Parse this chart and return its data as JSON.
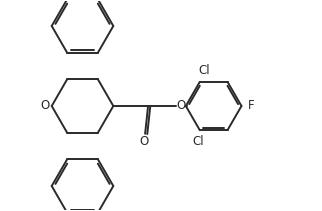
{
  "background_color": "#ffffff",
  "line_color": "#2a2a2a",
  "text_color": "#2a2a2a",
  "line_width": 1.4,
  "font_size": 8.5,
  "figsize": [
    3.22,
    2.11
  ],
  "dpi": 100,
  "xlim": [
    0,
    3.22
  ],
  "ylim": [
    0,
    2.11
  ]
}
